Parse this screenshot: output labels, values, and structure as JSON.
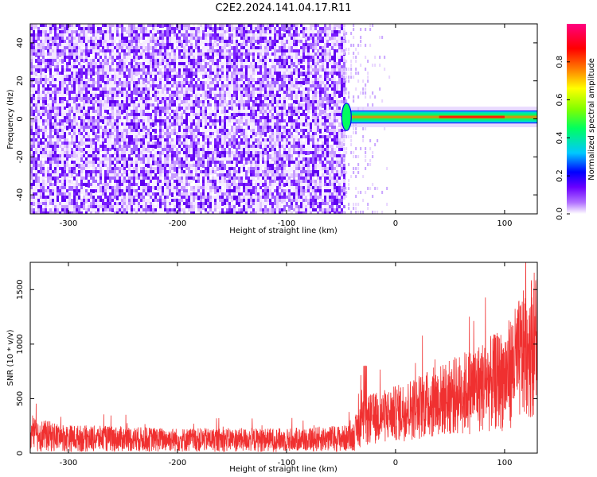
{
  "title": "C2E2.2024.141.04.17.R11",
  "chart_data": [
    {
      "type": "heatmap",
      "xlabel": "Height of straight line (km)",
      "ylabel": "Frequency (Hz)",
      "xlim": [
        -335,
        130
      ],
      "ylim": [
        -50,
        50
      ],
      "x_ticks": [
        -300,
        -200,
        -100,
        0,
        100
      ],
      "y_ticks": [
        -40,
        -20,
        0,
        20,
        40
      ],
      "colorbar": {
        "label": "Normalized spectral amplitude",
        "range": [
          0,
          1
        ],
        "ticks": [
          "0.0",
          "0.2",
          "0.4",
          "0.6",
          "0.8"
        ],
        "colors": [
          "#ffffff",
          "#6a00ff",
          "#0000ff",
          "#00c8ff",
          "#00ff00",
          "#ffff00",
          "#ff8000",
          "#ff0000",
          "#ff0080"
        ]
      },
      "regions": [
        {
          "x_range": [
            -335,
            -48
          ],
          "description_level": 0.2,
          "pattern": "noise"
        },
        {
          "x_range": [
            -48,
            130
          ],
          "signal_center_hz": 1,
          "signal_halfwidth_hz": 3,
          "peak_level": 0.9
        }
      ]
    },
    {
      "type": "line",
      "xlabel": "Height of straight line (km)",
      "ylabel": "SNR (10 * v/v)",
      "xlim": [
        -335,
        130
      ],
      "ylim": [
        0,
        1750
      ],
      "x_ticks": [
        -300,
        -200,
        -100,
        0,
        100
      ],
      "y_ticks": [
        0,
        500,
        1000,
        1500
      ],
      "color": "#f03030",
      "envelope": [
        {
          "x": -335,
          "low": 10,
          "high": 330
        },
        {
          "x": -300,
          "low": 10,
          "high": 260
        },
        {
          "x": -200,
          "low": 10,
          "high": 230
        },
        {
          "x": -100,
          "low": 10,
          "high": 230
        },
        {
          "x": -40,
          "low": 10,
          "high": 260
        },
        {
          "x": -30,
          "low": 60,
          "high": 520
        },
        {
          "x": 0,
          "low": 100,
          "high": 620
        },
        {
          "x": 50,
          "low": 150,
          "high": 860
        },
        {
          "x": 100,
          "low": 200,
          "high": 1150
        },
        {
          "x": 130,
          "low": 350,
          "high": 1750
        }
      ]
    }
  ]
}
